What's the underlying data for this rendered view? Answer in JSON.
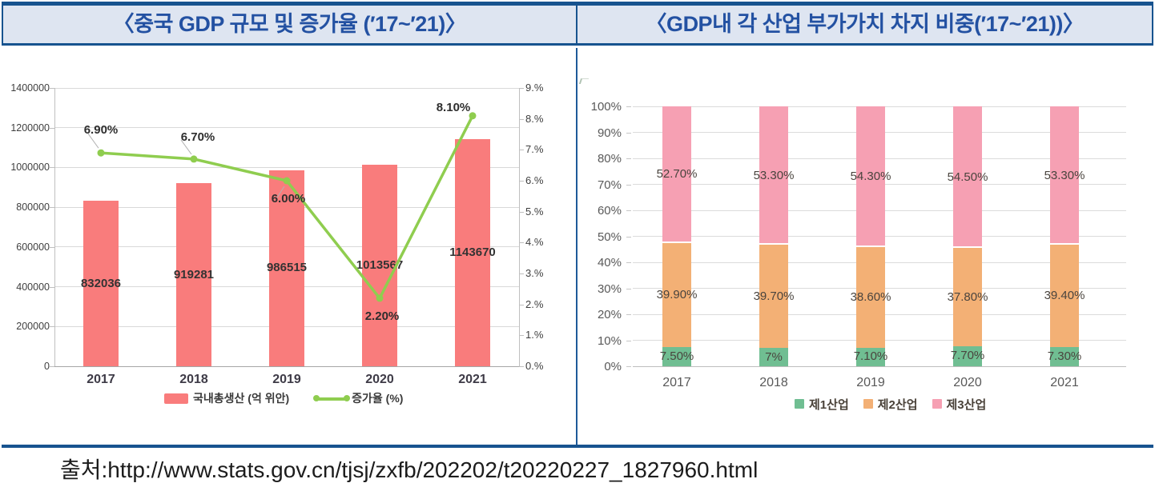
{
  "panels": {
    "left": {
      "title": "〈중국 GDP 규모 및 증가율 (′17~′21)〉"
    },
    "right": {
      "title": "〈GDP내 각 산업 부가가치 차지 비중(′17~′21))〉"
    }
  },
  "source": {
    "text": "출처:http://www.stats.gov.cn/tjsj/zxfb/202202/t20220227_1827960.html"
  },
  "colors": {
    "accent_navy": "#17538F",
    "title_text": "#2351A2",
    "title_band_bg": "#DEE5F1",
    "gdp_bar_red": "#F97C7C",
    "growth_line_green": "#8FCD4F",
    "sector1_green": "#70BE92",
    "sector2_orange": "#F3B075",
    "sector3_pink": "#F6A0B3"
  },
  "chart_data": [
    {
      "type": "bar",
      "title": "〈중국 GDP 규모 및 증가율 (′17~′21)〉",
      "categories": [
        "2017",
        "2018",
        "2019",
        "2020",
        "2021"
      ],
      "series": [
        {
          "name": "국내총생산 (억 위안)",
          "type": "bar",
          "axis": "left",
          "color": "#F97C7C",
          "values": [
            832036,
            919281,
            986515,
            1013567,
            1143670
          ],
          "labels": [
            "832036",
            "919281",
            "986515",
            "1013567",
            "1143670"
          ]
        },
        {
          "name": "증가율 (%)",
          "type": "line",
          "axis": "right",
          "color": "#8FCD4F",
          "values": [
            6.9,
            6.7,
            6.0,
            2.2,
            8.1
          ],
          "point_labels": [
            "6.90%",
            "6.70%",
            "6.00%",
            "2.20%",
            "8.10%"
          ]
        }
      ],
      "left_axis": {
        "min": 0,
        "max": 1400000,
        "step": 200000,
        "tick_values": [
          0,
          200000,
          400000,
          600000,
          800000,
          1000000,
          1200000,
          1400000
        ]
      },
      "right_axis": {
        "min": 0,
        "max": 9,
        "step": 1,
        "tick_labels": [
          "0.%",
          "1.%",
          "2.%",
          "3.%",
          "4.%",
          "5.%",
          "6.%",
          "7.%",
          "8.%",
          "9.%"
        ]
      },
      "grid": true,
      "legend_position": "bottom"
    },
    {
      "type": "stacked-bar",
      "title": "〈GDP내 각 산업 부가가치 차지 비중(′17~′21))〉",
      "categories": [
        "2017",
        "2018",
        "2019",
        "2020",
        "2021"
      ],
      "series": [
        {
          "name": "제1산업",
          "color": "#70BE92",
          "values": [
            7.5,
            7,
            7.1,
            7.7,
            7.3
          ],
          "labels": [
            "7.50%",
            "7%",
            "7.10%",
            "7.70%",
            "7.30%"
          ]
        },
        {
          "name": "제2산업",
          "color": "#F3B075",
          "values": [
            39.9,
            39.7,
            38.6,
            37.8,
            39.4
          ],
          "labels": [
            "39.90%",
            "39.70%",
            "38.60%",
            "37.80%",
            "39.40%"
          ]
        },
        {
          "name": "제3산업",
          "color": "#F6A0B3",
          "values": [
            52.7,
            53.3,
            54.3,
            54.5,
            53.3
          ],
          "labels": [
            "52.70%",
            "53.30%",
            "54.30%",
            "54.50%",
            "53.30%"
          ]
        }
      ],
      "y_axis": {
        "min": 0,
        "max": 100,
        "step": 10,
        "tick_labels": [
          "0%",
          "10%",
          "20%",
          "30%",
          "40%",
          "50%",
          "60%",
          "70%",
          "80%",
          "90%",
          "100%"
        ]
      },
      "grid": true,
      "legend_position": "bottom"
    }
  ]
}
